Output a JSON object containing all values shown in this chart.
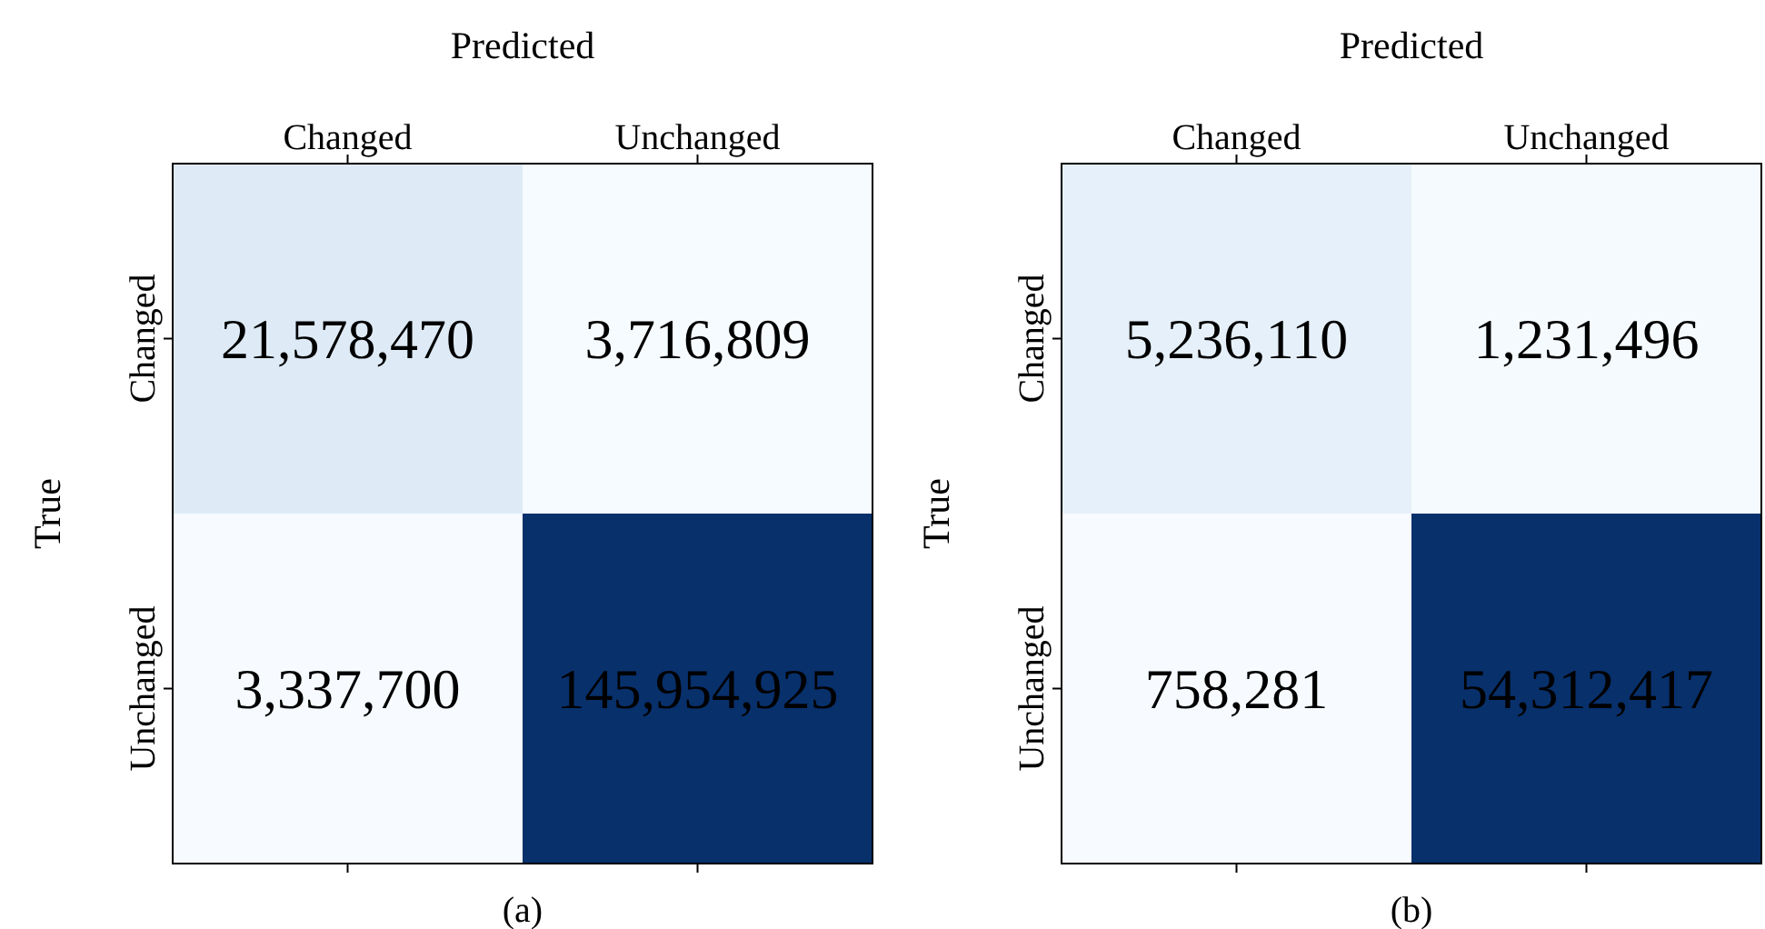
{
  "chart_data": [
    {
      "type": "heatmap",
      "xlabel": "Predicted",
      "ylabel": "True",
      "categories": [
        "Changed",
        "Unchanged"
      ],
      "y_categories": [
        "Changed",
        "Unchanged"
      ],
      "cells": [
        [
          21578470,
          3716809
        ],
        [
          3337700,
          145954925
        ]
      ],
      "cell_labels": [
        [
          "21,578,470",
          "3,716,809"
        ],
        [
          "3,337,700",
          "145,954,925"
        ]
      ],
      "data_labels": true,
      "annotations": [
        "(a)"
      ]
    },
    {
      "type": "heatmap",
      "xlabel": "Predicted",
      "ylabel": "True",
      "categories": [
        "Changed",
        "Unchanged"
      ],
      "y_categories": [
        "Changed",
        "Unchanged"
      ],
      "cells": [
        [
          5236110,
          1231496
        ],
        [
          758281,
          54312417
        ]
      ],
      "cell_labels": [
        [
          "5,236,110",
          "1,231,496"
        ],
        [
          "758,281",
          "54,312,417"
        ]
      ],
      "data_labels": true,
      "annotations": [
        "(b)"
      ]
    }
  ]
}
